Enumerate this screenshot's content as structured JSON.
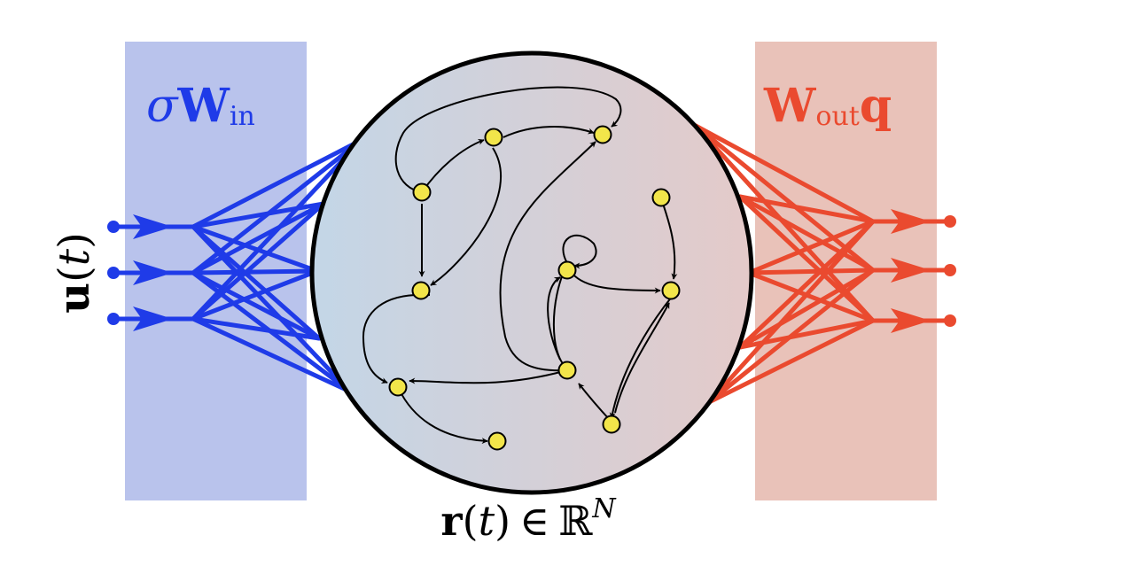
{
  "colors": {
    "input": "#1f3be8",
    "input_panel": "#b9c3ec",
    "output": "#ea4a2f",
    "output_panel": "#e9c2b9",
    "reservoir_left": "#c3d6e7",
    "reservoir_right": "#e4cac9",
    "node_fill": "#f2e54a",
    "edge": "#000000"
  },
  "input_panel": {
    "label": {
      "sigma": "σ",
      "matrix": "W",
      "sub": "in"
    }
  },
  "output_panel": {
    "label": {
      "matrix": "W",
      "sub": "out",
      "vec": "q"
    }
  },
  "input_signal": {
    "vec": "u",
    "open": "(",
    "var": "t",
    "close": ")"
  },
  "reservoir": {
    "label": {
      "vec": "r",
      "open": "(",
      "var": "t",
      "close": ")",
      "in": "∈",
      "set": "ℝ",
      "sup": "N"
    },
    "node_count": 11,
    "edge_count": 15
  },
  "input_channels": 3,
  "output_channels": 3
}
